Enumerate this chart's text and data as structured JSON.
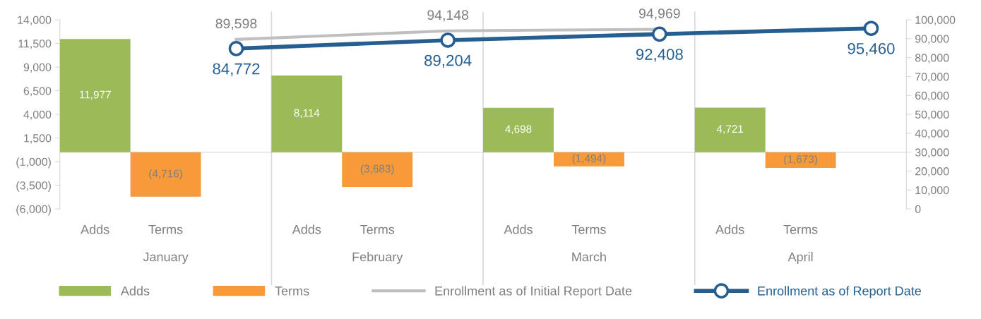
{
  "chart_data": {
    "type": "bar",
    "categories": [
      "Adds",
      "Terms",
      null,
      "Adds",
      "Terms",
      null,
      "Adds",
      "Terms",
      null,
      "Adds",
      "Terms",
      null
    ],
    "series": [
      {
        "name": "Adds",
        "color": "#9bbb59",
        "values": [
          11977,
          null,
          null,
          8114,
          null,
          null,
          4698,
          null,
          null,
          4721,
          null,
          null
        ],
        "value_labels": [
          "11,977",
          null,
          null,
          "8,114",
          null,
          null,
          "4,698",
          null,
          null,
          "4,721",
          null,
          null
        ]
      },
      {
        "name": "Terms",
        "color": "#f99a3a",
        "values": [
          null,
          -4716,
          null,
          null,
          -3683,
          null,
          null,
          -1494,
          null,
          null,
          -1673,
          null
        ],
        "value_labels": [
          null,
          "(4,716)",
          null,
          null,
          "(3,683)",
          null,
          null,
          "(1,494)",
          null,
          null,
          "(1,673)",
          null
        ]
      },
      {
        "name": "Enrollment as of Initial Report Date",
        "type": "line",
        "axis": "y2",
        "color": "#bfbfbf",
        "values": [
          null,
          null,
          89598,
          null,
          null,
          94148,
          null,
          null,
          94969,
          null,
          null,
          null
        ],
        "value_labels": [
          null,
          null,
          "89,598",
          null,
          null,
          "94,148",
          null,
          null,
          "94,969",
          null,
          null,
          null
        ]
      },
      {
        "name": "Enrollment as of Report Date",
        "type": "line",
        "axis": "y2",
        "color": "#255e91",
        "marker": "circle",
        "values": [
          null,
          null,
          84772,
          null,
          null,
          89204,
          null,
          null,
          92408,
          null,
          null,
          95460
        ],
        "value_labels": [
          null,
          null,
          "84,772",
          null,
          null,
          "89,204",
          null,
          null,
          "92,408",
          null,
          null,
          "95,460"
        ]
      }
    ],
    "ylim": [
      -6000,
      14000
    ],
    "yticks": [
      {
        "value": 14000,
        "label": "14,000"
      },
      {
        "value": 11500,
        "label": "11,500"
      },
      {
        "value": 9000,
        "label": "9,000"
      },
      {
        "value": 6500,
        "label": "6,500"
      },
      {
        "value": 4000,
        "label": "4,000"
      },
      {
        "value": 1500,
        "label": "1,500"
      },
      {
        "value": -1000,
        "label": "(1,000)"
      },
      {
        "value": -3500,
        "label": "(3,500)"
      },
      {
        "value": -6000,
        "label": "(6,000)"
      }
    ],
    "y2lim": [
      0,
      100000
    ],
    "y2ticks": [
      0,
      {
        "value": 10000,
        "label": "10,000"
      },
      {
        "value": 20000,
        "label": "20,000"
      },
      {
        "value": 30000,
        "label": "30,000"
      },
      {
        "value": 40000,
        "label": "40,000"
      },
      {
        "value": 50000,
        "label": "50,000"
      },
      {
        "value": 60000,
        "label": "60,000"
      },
      {
        "value": 70000,
        "label": "70,000"
      },
      {
        "value": 80000,
        "label": "80,000"
      },
      {
        "value": 90000,
        "label": "90,000"
      },
      {
        "value": 100000,
        "label": "100,000"
      }
    ],
    "annotations": [
      "January",
      "February",
      "March",
      "April"
    ],
    "ref_lines": [
      {
        "axis": "y",
        "value": 0,
        "color": "#d9d9d9"
      }
    ],
    "legend": "bottom",
    "grid": false
  }
}
